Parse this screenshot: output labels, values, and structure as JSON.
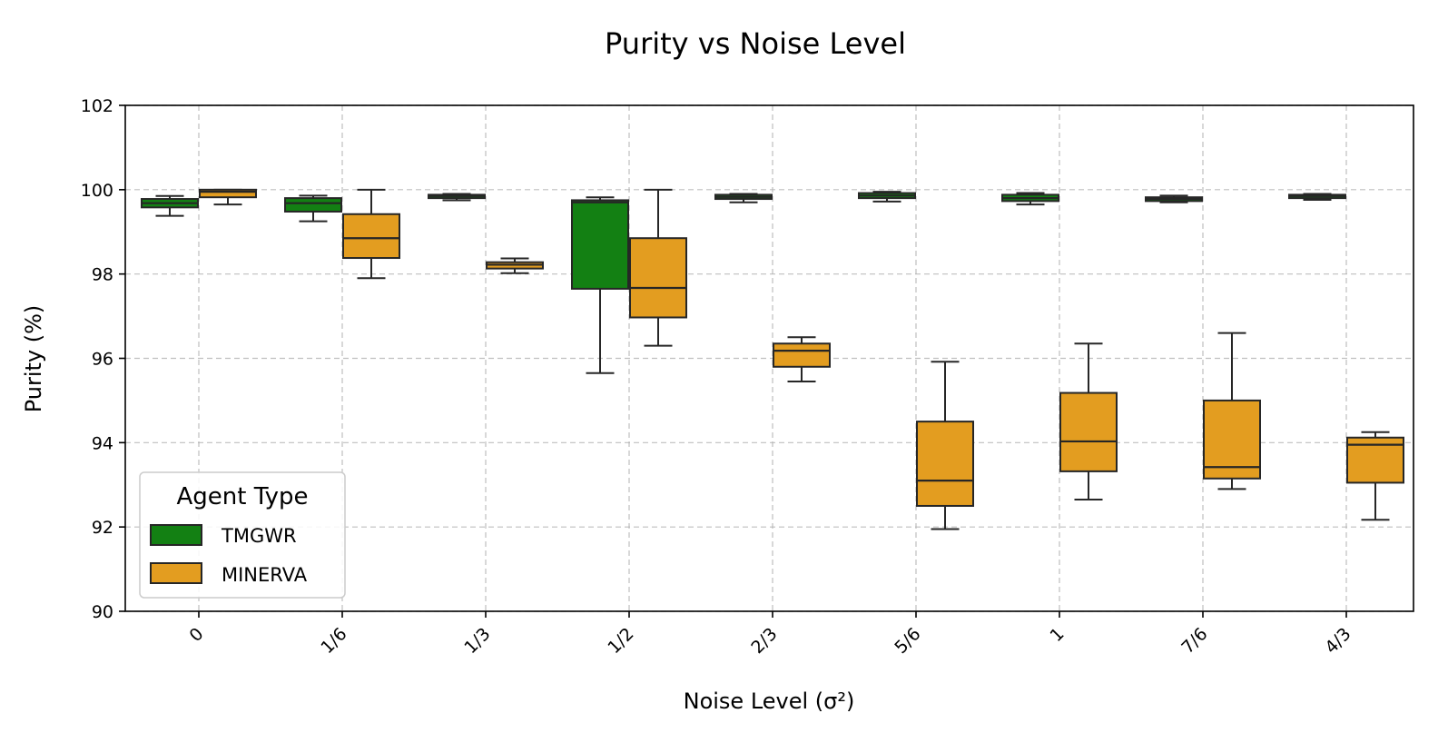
{
  "chart_data": {
    "type": "box",
    "title": "Purity vs Noise Level",
    "xlabel": "Noise Level (σ²)",
    "ylabel": "Purity (%)",
    "ylim": [
      90,
      102
    ],
    "yticks": [
      "90",
      "92",
      "94",
      "96",
      "98",
      "100",
      "102"
    ],
    "categories": [
      "0",
      "1/6",
      "1/3",
      "1/2",
      "2/3",
      "5/6",
      "1",
      "7/6",
      "4/3"
    ],
    "grid": true,
    "legend": {
      "title": "Agent Type",
      "placement": "lower-left"
    },
    "series": [
      {
        "name": "TMGWR",
        "color": "#138013",
        "boxes": [
          {
            "whislo": 99.38,
            "q1": 99.58,
            "med": 99.68,
            "q3": 99.78,
            "whishi": 99.85
          },
          {
            "whislo": 99.25,
            "q1": 99.48,
            "med": 99.68,
            "q3": 99.8,
            "whishi": 99.86
          },
          {
            "whislo": 99.75,
            "q1": 99.8,
            "med": 99.85,
            "q3": 99.88,
            "whishi": 99.9
          },
          {
            "whislo": 95.65,
            "q1": 97.65,
            "med": 99.7,
            "q3": 99.75,
            "whishi": 99.82
          },
          {
            "whislo": 99.7,
            "q1": 99.78,
            "med": 99.83,
            "q3": 99.88,
            "whishi": 99.9
          },
          {
            "whislo": 99.72,
            "q1": 99.8,
            "med": 99.86,
            "q3": 99.92,
            "whishi": 99.95
          },
          {
            "whislo": 99.65,
            "q1": 99.73,
            "med": 99.8,
            "q3": 99.88,
            "whishi": 99.92
          },
          {
            "whislo": 99.7,
            "q1": 99.73,
            "med": 99.78,
            "q3": 99.82,
            "whishi": 99.86
          },
          {
            "whislo": 99.76,
            "q1": 99.8,
            "med": 99.85,
            "q3": 99.88,
            "whishi": 99.9
          }
        ]
      },
      {
        "name": "MINERVA",
        "color": "#e39d20",
        "boxes": [
          {
            "whislo": 99.65,
            "q1": 99.82,
            "med": 99.95,
            "q3": 100.0,
            "whishi": 100.0
          },
          {
            "whislo": 97.9,
            "q1": 98.38,
            "med": 98.85,
            "q3": 99.42,
            "whishi": 100.0
          },
          {
            "whislo": 98.02,
            "q1": 98.13,
            "med": 98.22,
            "q3": 98.28,
            "whishi": 98.37
          },
          {
            "whislo": 96.3,
            "q1": 96.97,
            "med": 97.67,
            "q3": 98.85,
            "whishi": 100.0
          },
          {
            "whislo": 95.45,
            "q1": 95.8,
            "med": 96.18,
            "q3": 96.35,
            "whishi": 96.5
          },
          {
            "whislo": 91.95,
            "q1": 92.5,
            "med": 93.1,
            "q3": 94.5,
            "whishi": 95.92
          },
          {
            "whislo": 92.65,
            "q1": 93.32,
            "med": 94.03,
            "q3": 95.18,
            "whishi": 96.35
          },
          {
            "whislo": 92.9,
            "q1": 93.15,
            "med": 93.42,
            "q3": 95.0,
            "whishi": 96.6
          },
          {
            "whislo": 92.17,
            "q1": 93.05,
            "med": 93.95,
            "q3": 94.12,
            "whishi": 94.25
          }
        ]
      }
    ]
  }
}
